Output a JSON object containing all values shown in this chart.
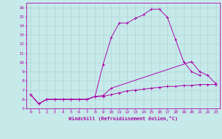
{
  "background_color": "#c6e9e9",
  "grid_color": "#aed4d4",
  "line_color": "#aa00aa",
  "xlabel": "Windchill (Refroidissement éolien,°C)",
  "xlim": [
    -0.5,
    23.5
  ],
  "ylim": [
    5,
    16.5
  ],
  "yticks": [
    5,
    6,
    7,
    8,
    9,
    10,
    11,
    12,
    13,
    14,
    15,
    16
  ],
  "xticks": [
    0,
    1,
    2,
    3,
    4,
    5,
    6,
    7,
    8,
    9,
    10,
    11,
    12,
    13,
    14,
    15,
    16,
    17,
    18,
    19,
    20,
    21,
    22,
    23
  ],
  "line1_x": [
    0,
    1,
    2,
    3,
    4,
    5,
    6,
    7,
    8,
    9,
    10,
    11,
    12,
    13,
    14,
    15,
    16,
    17,
    18,
    19,
    20,
    21
  ],
  "line1_y": [
    6.5,
    5.5,
    6.0,
    6.0,
    6.0,
    6.0,
    6.0,
    6.0,
    6.3,
    9.8,
    12.7,
    14.3,
    14.3,
    14.8,
    15.2,
    15.8,
    15.8,
    14.9,
    12.5,
    10.1,
    9.0,
    8.6
  ],
  "line2_x": [
    0,
    1,
    2,
    3,
    4,
    5,
    6,
    7,
    8,
    9,
    10,
    20,
    21,
    22,
    23
  ],
  "line2_y": [
    6.5,
    5.5,
    6.0,
    6.0,
    6.0,
    6.0,
    6.0,
    6.0,
    6.3,
    6.4,
    7.2,
    10.1,
    9.0,
    8.6,
    7.7
  ],
  "line3_x": [
    0,
    1,
    2,
    3,
    4,
    5,
    6,
    7,
    8,
    9,
    10,
    11,
    12,
    13,
    14,
    15,
    16,
    17,
    18,
    19,
    20,
    21,
    22,
    23
  ],
  "line3_y": [
    6.5,
    5.5,
    6.0,
    6.0,
    6.0,
    6.0,
    6.0,
    6.0,
    6.3,
    6.3,
    6.5,
    6.7,
    6.9,
    7.0,
    7.1,
    7.2,
    7.3,
    7.4,
    7.4,
    7.5,
    7.5,
    7.6,
    7.6,
    7.6
  ]
}
